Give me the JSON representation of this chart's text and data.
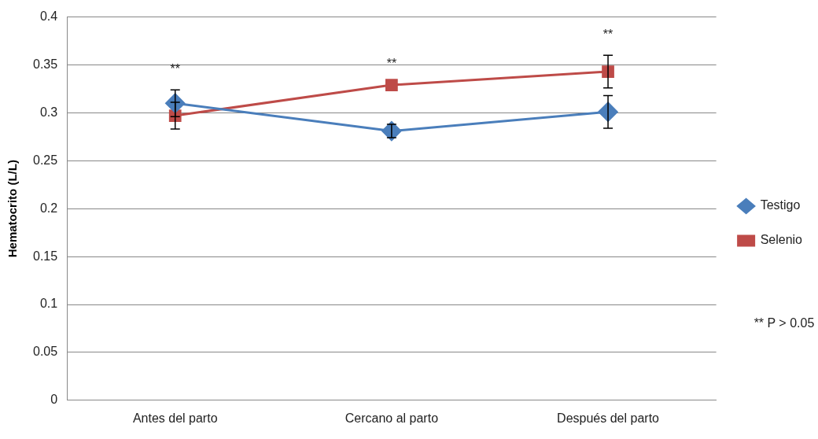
{
  "chart_data": {
    "type": "line",
    "ylabel": "Hematocrito (L/L)",
    "categories": [
      "Antes del parto",
      "Cercano al parto",
      "Después del parto"
    ],
    "series": [
      {
        "name": "Testigo",
        "color": "#4a7ebb",
        "marker": "diamond",
        "values": [
          0.31,
          0.281,
          0.301
        ],
        "errors": [
          0.014,
          0.007,
          0.017
        ]
      },
      {
        "name": "Selenio",
        "color": "#be4b48",
        "marker": "square",
        "values": [
          0.297,
          0.329,
          0.343
        ],
        "errors": [
          0.014,
          null,
          0.017
        ]
      }
    ],
    "ylim": [
      0,
      0.4
    ],
    "yticks": [
      0,
      0.05,
      0.1,
      0.15,
      0.2,
      0.25,
      0.3,
      0.35,
      0.4
    ],
    "grid": "y",
    "legend": "right",
    "annotations": [
      "**",
      "**",
      "**",
      "** P > 0.05"
    ]
  }
}
